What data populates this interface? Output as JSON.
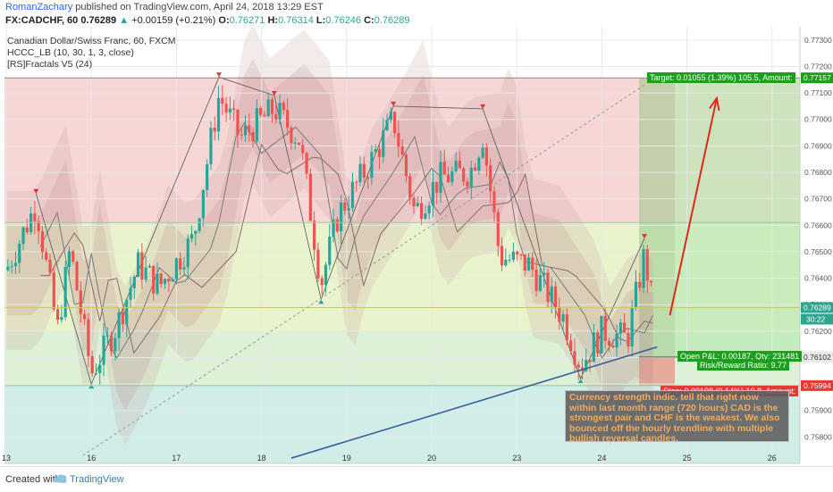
{
  "header": {
    "author": "RomanZachary",
    "published": "published on TradingView.com, April 24, 2018 13:29 EST",
    "symbol": "FX:CADCHF, 60",
    "last": "0.76289",
    "change": "+0.00159 (+0.21%)",
    "ohlc": [
      {
        "k": "O:",
        "v": "0.76271"
      },
      {
        "k": "H:",
        "v": "0.76314"
      },
      {
        "k": "L:",
        "v": "0.76246"
      },
      {
        "k": "C:",
        "v": "0.76289"
      }
    ]
  },
  "legend": {
    "title": "Canadian Dollar/Swiss Franc, 60, FXCM",
    "indicator1": "HCCC_LB (10, 30, 1, 3, close)",
    "indicator2": "[RS]Fractals V5 (24)"
  },
  "trade": {
    "target_label": "Target: 0.01055 (1.39%) 105.5, Amount:",
    "open_label": "Open P&L: 0.00187, Qty: 231481",
    "rr_label": "Risk/Reward Ratio: 9.77",
    "stop_label": "Stop: 0.00108 (0.14%) 10.8, Amount:"
  },
  "price_tags": {
    "target": "0.77157",
    "current": "0.76289",
    "countdown": "30:22",
    "entry": "0.76102",
    "stop": "0.75994"
  },
  "annotation": "Currency strength indic. tell that right now within last month range (720 hours) CAD is the strongest pair and CHF is the weakest. We also bounced off the hourly trendline with multiple bullish reversal candles.",
  "footer": {
    "created": "Created with",
    "brand": "TradingView"
  },
  "colors": {
    "up": "#26a69a",
    "down": "#ef5350",
    "arrow": "#e0291b",
    "target": "#21a121",
    "stop": "#e53935",
    "trendline": "#3a5b9d"
  },
  "chart_data": {
    "type": "candlestick",
    "symbol": "CADCHF",
    "timeframe": "60",
    "x_ticks": [
      "13",
      "16",
      "17",
      "18",
      "19",
      "20",
      "23",
      "24",
      "25",
      "26"
    ],
    "y_ticks": [
      "0.77300",
      "0.77200",
      "0.77100",
      "0.77000",
      "0.76900",
      "0.76800",
      "0.76700",
      "0.76600",
      "0.76500",
      "0.76400",
      "0.76300",
      "0.76200",
      "0.76100",
      "0.76000",
      "0.75900",
      "0.75800"
    ],
    "ylim": [
      0.757,
      0.7735
    ],
    "path_points": [
      {
        "d": 0.0,
        "p": 0.7643
      },
      {
        "d": 0.35,
        "p": 0.7668
      },
      {
        "d": 0.6,
        "p": 0.762
      },
      {
        "d": 0.75,
        "p": 0.7651
      },
      {
        "d": 1.0,
        "p": 0.7604
      },
      {
        "d": 1.3,
        "p": 0.7622
      },
      {
        "d": 1.55,
        "p": 0.7645
      },
      {
        "d": 1.8,
        "p": 0.7637
      },
      {
        "d": 2.2,
        "p": 0.7655
      },
      {
        "d": 2.5,
        "p": 0.7709
      },
      {
        "d": 2.75,
        "p": 0.7693
      },
      {
        "d": 3.15,
        "p": 0.7704
      },
      {
        "d": 3.45,
        "p": 0.7692
      },
      {
        "d": 3.7,
        "p": 0.7638
      },
      {
        "d": 3.9,
        "p": 0.7664
      },
      {
        "d": 4.3,
        "p": 0.7685
      },
      {
        "d": 4.55,
        "p": 0.77
      },
      {
        "d": 4.8,
        "p": 0.7665
      },
      {
        "d": 5.1,
        "p": 0.7678
      },
      {
        "d": 5.45,
        "p": 0.768
      },
      {
        "d": 5.6,
        "p": 0.7694
      },
      {
        "d": 5.8,
        "p": 0.7648
      },
      {
        "d": 6.15,
        "p": 0.7645
      },
      {
        "d": 6.55,
        "p": 0.7625
      },
      {
        "d": 6.75,
        "p": 0.7607
      },
      {
        "d": 7.0,
        "p": 0.762
      },
      {
        "d": 7.3,
        "p": 0.7617
      },
      {
        "d": 7.5,
        "p": 0.7649
      },
      {
        "d": 7.6,
        "p": 0.7629
      }
    ],
    "fractal_highs": [
      {
        "d": 0.35,
        "p": 0.7672
      },
      {
        "d": 2.5,
        "p": 0.7716
      },
      {
        "d": 3.15,
        "p": 0.7709
      },
      {
        "d": 4.55,
        "p": 0.7705
      },
      {
        "d": 5.6,
        "p": 0.7704
      },
      {
        "d": 7.5,
        "p": 0.7655
      }
    ],
    "fractal_lows": [
      {
        "d": 1.0,
        "p": 0.76
      },
      {
        "d": 3.7,
        "p": 0.7632
      },
      {
        "d": 6.75,
        "p": 0.7602
      }
    ],
    "levels": {
      "target": 0.77157,
      "upper_zone": 0.7661,
      "last": 0.76289,
      "entry": 0.76102,
      "stop": 0.75994
    },
    "trendline": [
      {
        "d": 3.35,
        "p": 0.7572
      },
      {
        "d": 7.65,
        "p": 0.7614
      }
    ],
    "dotted_line": [
      {
        "d": 0.9,
        "p": 0.7573
      },
      {
        "d": 7.5,
        "p": 0.7713
      }
    ],
    "arrow": [
      {
        "d": 7.8,
        "p": 0.7626
      },
      {
        "d": 8.35,
        "p": 0.7708
      }
    ]
  }
}
